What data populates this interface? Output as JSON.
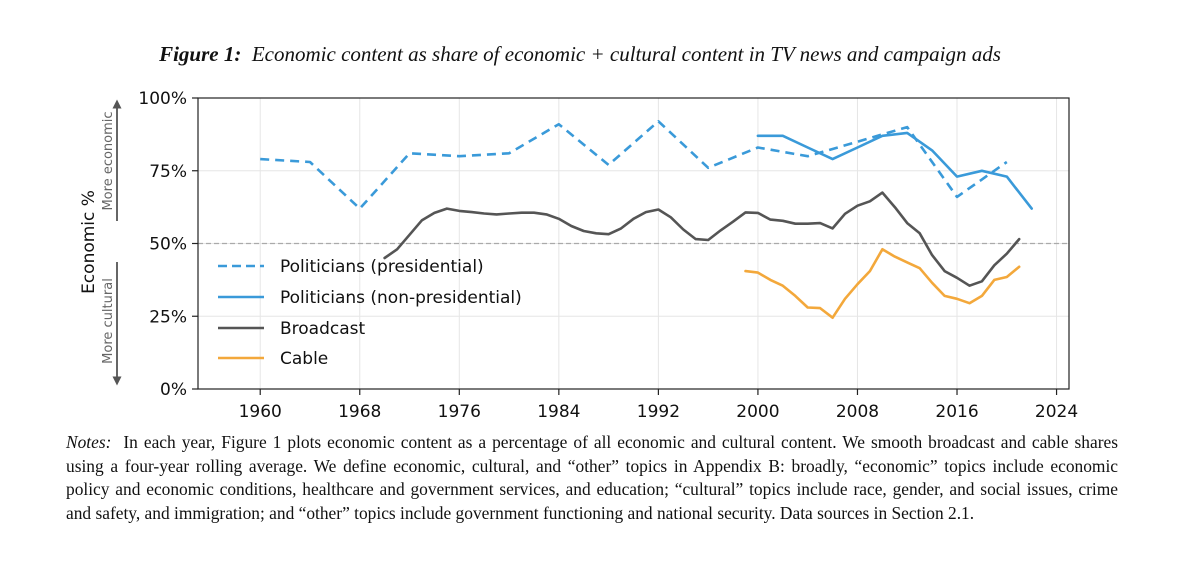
{
  "figure": {
    "label": "Figure 1:",
    "title": "Economic content as share of economic + cultural content in TV news and campaign ads"
  },
  "notes": {
    "label": "Notes:",
    "text": "In each year, Figure 1 plots economic content as a percentage of all economic and cultural content. We smooth broadcast and cable shares using a four-year rolling average. We define economic, cultural, and “other” topics in Appendix B: broadly, “economic” topics include economic policy and economic conditions, healthcare and government services, and education; “cultural” topics include race, gender, and social issues, crime and safety, and immigration; and “other” topics include government functioning and national security. Data sources in Section 2.1."
  },
  "chart_data": {
    "type": "line",
    "ylabel": "Economic %",
    "annotations": {
      "upper": "More economic",
      "lower": "More cultural"
    },
    "xlim": [
      1955,
      2025
    ],
    "ylim": [
      0,
      100
    ],
    "xticks": [
      1960,
      1968,
      1976,
      1984,
      1992,
      2000,
      2008,
      2016,
      2024
    ],
    "yticks": [
      0,
      25,
      50,
      75,
      100
    ],
    "ytick_labels": [
      "0%",
      "25%",
      "50%",
      "75%",
      "100%"
    ],
    "reference_line": 50,
    "grid": true,
    "legend_position": "lower-left",
    "series": [
      {
        "name": "Politicians (presidential)",
        "color": "#3a9ad9",
        "style": "dashed",
        "x": [
          1960,
          1964,
          1968,
          1972,
          1976,
          1980,
          1984,
          1988,
          1992,
          1996,
          2000,
          2004,
          2008,
          2012,
          2016,
          2020
        ],
        "y": [
          79,
          78,
          62,
          81,
          80,
          81,
          91,
          77,
          92,
          76,
          83,
          80,
          85,
          90,
          66,
          78
        ]
      },
      {
        "name": "Politicians (non-presidential)",
        "color": "#3a9ad9",
        "style": "solid",
        "x": [
          2000,
          2002,
          2004,
          2006,
          2008,
          2010,
          2012,
          2014,
          2016,
          2018,
          2020,
          2022
        ],
        "y": [
          87,
          87,
          83,
          79,
          83,
          87,
          88,
          82,
          73,
          75,
          73,
          62
        ]
      },
      {
        "name": "Broadcast",
        "color": "#555555",
        "style": "solid",
        "x": [
          1970,
          1971,
          1972,
          1973,
          1974,
          1975,
          1976,
          1977,
          1978,
          1979,
          1980,
          1981,
          1982,
          1983,
          1984,
          1985,
          1986,
          1987,
          1988,
          1989,
          1990,
          1991,
          1992,
          1993,
          1994,
          1995,
          1996,
          1997,
          1998,
          1999,
          2000,
          2001,
          2002,
          2003,
          2004,
          2005,
          2006,
          2007,
          2008,
          2009,
          2010,
          2011,
          2012,
          2013,
          2014,
          2015,
          2016,
          2017,
          2018,
          2019,
          2020,
          2021
        ],
        "y": [
          45,
          48,
          53,
          58,
          60.5,
          62,
          61.2,
          60.8,
          60.3,
          60,
          60.3,
          60.6,
          60.6,
          60,
          58.5,
          56,
          54.3,
          53.5,
          53.2,
          55.2,
          58.5,
          60.8,
          61.7,
          59,
          54.8,
          51.5,
          51.2,
          54.5,
          57.5,
          60.7,
          60.5,
          58.2,
          57.8,
          56.8,
          56.8,
          57,
          55.2,
          60.2,
          63,
          64.5,
          67.5,
          62.5,
          57,
          53.5,
          46,
          40.5,
          38.2,
          35.5,
          37,
          42.5,
          46.5,
          51.5
        ]
      },
      {
        "name": "Cable",
        "color": "#f3a83b",
        "style": "solid",
        "x": [
          1999,
          2000,
          2001,
          2002,
          2003,
          2004,
          2005,
          2006,
          2007,
          2008,
          2009,
          2010,
          2011,
          2012,
          2013,
          2014,
          2015,
          2016,
          2017,
          2018,
          2019,
          2020,
          2021
        ],
        "y": [
          40.5,
          40,
          37.5,
          35.5,
          32,
          28,
          27.8,
          24.5,
          31,
          36,
          40.5,
          48,
          45.5,
          43.5,
          41.5,
          36.5,
          32,
          31,
          29.5,
          32,
          37.5,
          38.5,
          42
        ]
      }
    ]
  }
}
